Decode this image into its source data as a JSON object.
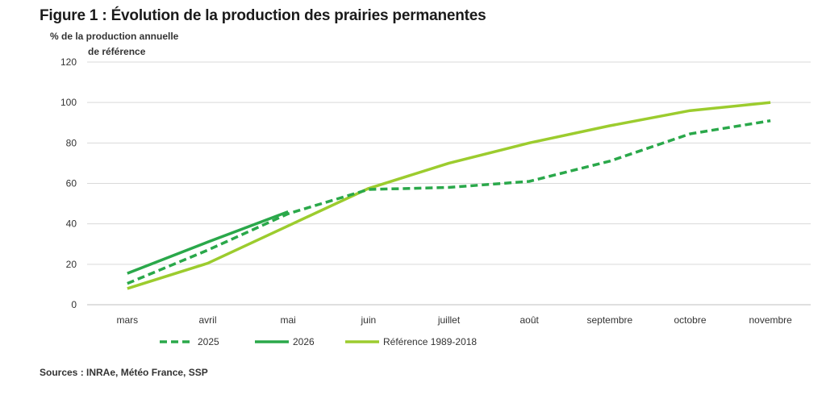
{
  "chart_data": {
    "type": "line",
    "title": "Figure 1 : Évolution de la production des prairies permanentes",
    "ylabel_line1": "% de la production  annuelle",
    "ylabel_line2": "de référence",
    "categories": [
      "mars",
      "avril",
      "mai",
      "juin",
      "juillet",
      "août",
      "septembre",
      "octobre",
      "novembre"
    ],
    "ylim": [
      0,
      120
    ],
    "yticks": [
      0,
      20,
      40,
      60,
      80,
      100,
      120
    ],
    "grid": true,
    "legend_position": "bottom-left",
    "series": [
      {
        "name": "2025",
        "style": "dashed",
        "color": "#2aa84a",
        "values": [
          10.5,
          27,
          45,
          57,
          58,
          61,
          71,
          84.5,
          91
        ]
      },
      {
        "name": "2026",
        "style": "solid",
        "color": "#2aa84a",
        "values": [
          15.5,
          31,
          46,
          null,
          null,
          null,
          null,
          null,
          null
        ]
      },
      {
        "name": "Référence 1989-2018",
        "style": "solid",
        "color": "#9ccc2e",
        "values": [
          8,
          20.5,
          39,
          57.5,
          70,
          80,
          88.5,
          96,
          100
        ]
      }
    ],
    "source": "Sources : INRAe, Météo France, SSP"
  }
}
